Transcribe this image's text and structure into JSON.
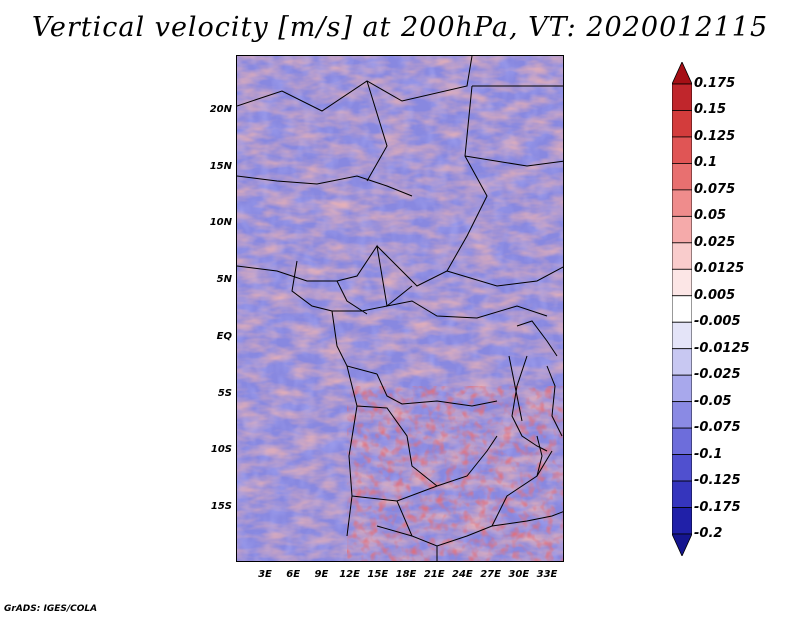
{
  "title": "Vertical velocity [m/s] at 200hPa, VT: 2020012115",
  "footer": "GrADS: IGES/COLA",
  "map": {
    "variable": "Vertical velocity",
    "units": "m/s",
    "level": "200hPa",
    "valid_time": "2020012115",
    "lat_labels": [
      "20N",
      "15N",
      "10N",
      "5N",
      "EQ",
      "5S",
      "10S",
      "15S"
    ],
    "lon_labels": [
      "3E",
      "6E",
      "9E",
      "12E",
      "15E",
      "18E",
      "21E",
      "24E",
      "27E",
      "30E",
      "33E"
    ]
  },
  "colorbar": {
    "labels": [
      "0.175",
      "0.15",
      "0.125",
      "0.1",
      "0.075",
      "0.05",
      "0.025",
      "0.0125",
      "0.005",
      "-0.005",
      "-0.0125",
      "-0.025",
      "-0.05",
      "-0.075",
      "-0.1",
      "-0.125",
      "-0.175",
      "-0.2"
    ],
    "colors": [
      "#a50f15",
      "#c0262c",
      "#d33c3c",
      "#e05555",
      "#e87070",
      "#ef8c8c",
      "#f5aaaa",
      "#f9cccc",
      "#fce6e6",
      "#ffffff",
      "#e4e4f8",
      "#c8c8f2",
      "#a8a8ec",
      "#8a8ae4",
      "#6d6ddb",
      "#5050cf",
      "#3535bd",
      "#2020a8",
      "#15158f"
    ]
  }
}
